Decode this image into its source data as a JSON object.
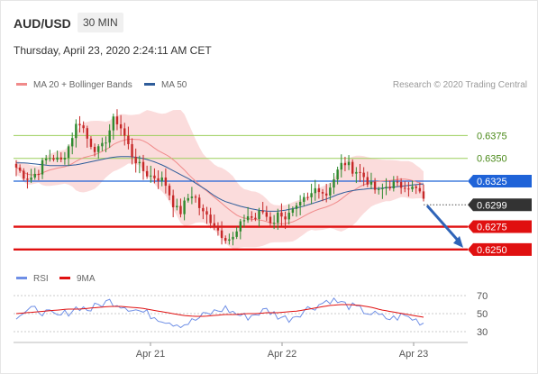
{
  "header": {
    "symbol": "AUD/USD",
    "timeframe": "30 MIN",
    "datetime": "Thursday, April 23, 2020 2:24:11 AM CET"
  },
  "legend": {
    "items": [
      {
        "label": "MA 20 + Bollinger Bands",
        "color": "#f08a8a"
      },
      {
        "label": "MA 50",
        "color": "#2f5d9a"
      }
    ],
    "credit": "Research © 2020 Trading Central"
  },
  "rsi_legend": {
    "items": [
      {
        "label": "RSI",
        "color": "#6f8fe6"
      },
      {
        "label": "9MA",
        "color": "#e01010"
      }
    ]
  },
  "chart_data": {
    "type": "candlestick",
    "x_tick_labels": [
      "Apr 21",
      "Apr 22",
      "Apr 23"
    ],
    "ylim": [
      0.6237,
      0.641
    ],
    "levels": [
      {
        "label": "0.6375",
        "value": 0.6375,
        "style": "resistance",
        "color": "#9ccf5b"
      },
      {
        "label": "0.6350",
        "value": 0.635,
        "style": "resistance",
        "color": "#9ccf5b"
      },
      {
        "label": "0.6325",
        "value": 0.6325,
        "style": "pivot",
        "color": "#1f63d8"
      },
      {
        "label": "0.6299",
        "value": 0.6299,
        "style": "current",
        "color": "#333333"
      },
      {
        "label": "0.6275",
        "value": 0.6275,
        "style": "support",
        "color": "#e01010"
      },
      {
        "label": "0.6250",
        "value": 0.625,
        "style": "support",
        "color": "#e01010"
      }
    ],
    "close_path": [
      0.634,
      0.6335,
      0.633,
      0.6328,
      0.6332,
      0.6336,
      0.6345,
      0.635,
      0.6352,
      0.6349,
      0.6346,
      0.6355,
      0.6365,
      0.638,
      0.6392,
      0.6385,
      0.6372,
      0.6365,
      0.636,
      0.6358,
      0.6368,
      0.638,
      0.6392,
      0.639,
      0.638,
      0.6368,
      0.6355,
      0.6348,
      0.634,
      0.6335,
      0.6331,
      0.633,
      0.6329,
      0.6326,
      0.632,
      0.6305,
      0.6295,
      0.629,
      0.63,
      0.6308,
      0.6312,
      0.63,
      0.629,
      0.6287,
      0.6282,
      0.6276,
      0.6268,
      0.6265,
      0.6262,
      0.6262,
      0.627,
      0.628,
      0.6288,
      0.6285,
      0.6284,
      0.629,
      0.6292,
      0.6282,
      0.628,
      0.6288,
      0.629,
      0.6284,
      0.629,
      0.6292,
      0.6297,
      0.6304,
      0.6305,
      0.6313,
      0.632,
      0.6314,
      0.631,
      0.6322,
      0.633,
      0.634,
      0.6346,
      0.6342,
      0.6338,
      0.6336,
      0.6332,
      0.6328,
      0.632,
      0.6316,
      0.6312,
      0.6318,
      0.632,
      0.6322,
      0.632,
      0.632,
      0.6322,
      0.6318,
      0.6316,
      0.6314,
      0.6302
    ],
    "ma50": [
      0.6345,
      0.6345,
      0.6344,
      0.6343,
      0.6342,
      0.6342,
      0.6342,
      0.6343,
      0.6345,
      0.6347,
      0.6349,
      0.6351,
      0.6352,
      0.6352,
      0.6351,
      0.6349,
      0.6346,
      0.6342,
      0.6337,
      0.6332,
      0.6327,
      0.6321,
      0.6315,
      0.6308,
      0.6303,
      0.63,
      0.6297,
      0.6295,
      0.6293,
      0.6292,
      0.6292,
      0.6293,
      0.6295,
      0.6297,
      0.63,
      0.6303,
      0.6306,
      0.631,
      0.6313,
      0.6315,
      0.6316,
      0.6317,
      0.6317,
      0.6318,
      0.6319,
      0.632,
      0.6321,
      0.6322
    ],
    "rsi": [
      48,
      52,
      55,
      50,
      46,
      52,
      58,
      54,
      60,
      64,
      60,
      56,
      52,
      48,
      44,
      40,
      38,
      42,
      48,
      52,
      56,
      50,
      46,
      50,
      54,
      48,
      44,
      50,
      56,
      60,
      66,
      62,
      58,
      54,
      50,
      46,
      44,
      48,
      44,
      40
    ],
    "rsi_ma9": [
      50,
      51,
      52,
      53,
      54,
      55,
      55,
      56,
      57,
      58,
      58,
      57,
      56,
      54,
      52,
      50,
      48,
      47,
      47,
      48,
      49,
      49,
      50,
      50,
      51,
      51,
      52,
      53,
      55,
      57,
      59,
      60,
      60,
      59,
      57,
      54,
      52,
      50,
      48,
      46
    ],
    "rsi_ylim": [
      20,
      80
    ],
    "rsi_ticks": [
      "70",
      "50",
      "30"
    ]
  }
}
